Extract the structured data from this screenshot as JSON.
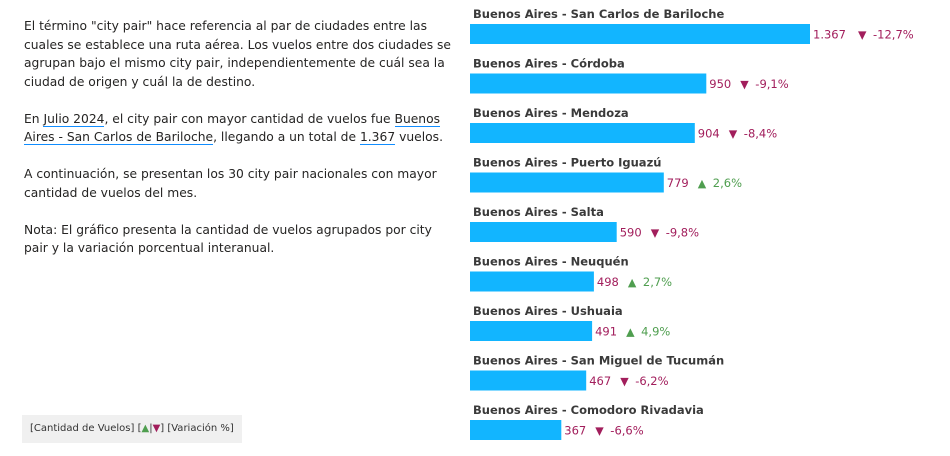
{
  "intro": {
    "p1": "El término \"city pair\" hace referencia al par de ciudades entre las cuales se establece una ruta aérea. Los vuelos entre dos ciudades se agrupan bajo el mismo city pair, independientemente de cuál sea la ciudad de origen y cuál la de destino.",
    "p2_a": "En ",
    "p2_month": "Julio 2024",
    "p2_b": ", el city pair con mayor cantidad de vuelos fue ",
    "p2_pair": "Buenos Aires - San Carlos de Bariloche",
    "p2_c": ", llegando a un total de ",
    "p2_total": "1.367",
    "p2_d": " vuelos.",
    "p3": "A continuación, se presentan los 30 city pair nacionales con mayor cantidad de vuelos del mes.",
    "p4": "Nota: El gráfico presenta la cantidad de vuelos agrupados por city pair y la variación porcentual interanual."
  },
  "legend": {
    "part1": "[Cantidad de Vuelos] [",
    "up": "▲",
    "sep": "|",
    "down": "▼",
    "part2": "] [Variación %]"
  },
  "colors": {
    "bar": "#12B5FF",
    "up": "#4F9E4F",
    "down": "#A21E5C",
    "label": "#252423",
    "value": "#A21E5C"
  },
  "chart_data": {
    "type": "bar",
    "orientation": "horizontal",
    "categories": [
      "Buenos Aires - San Carlos de Bariloche",
      "Buenos Aires - Córdoba",
      "Buenos Aires - Mendoza",
      "Buenos Aires - Puerto Iguazú",
      "Buenos Aires - Salta",
      "Buenos Aires - Neuquén",
      "Buenos Aires - Ushuaia",
      "Buenos Aires - San Miguel de Tucumán",
      "Buenos Aires - Comodoro Rivadavia"
    ],
    "values": [
      1367,
      950,
      904,
      779,
      590,
      498,
      491,
      467,
      367
    ],
    "value_labels": [
      "1.367",
      "950",
      "904",
      "779",
      "590",
      "498",
      "491",
      "467",
      "367"
    ],
    "variation": [
      -12.7,
      -9.1,
      -8.4,
      2.6,
      -9.8,
      2.7,
      4.9,
      -6.2,
      -6.6
    ],
    "variation_labels": [
      "-12,7%",
      "-9,1%",
      "-8,4%",
      "2,6%",
      "-9,8%",
      "2,7%",
      "4,9%",
      "-6,2%",
      "-6,6%"
    ],
    "xlim": [
      0,
      1367
    ]
  }
}
